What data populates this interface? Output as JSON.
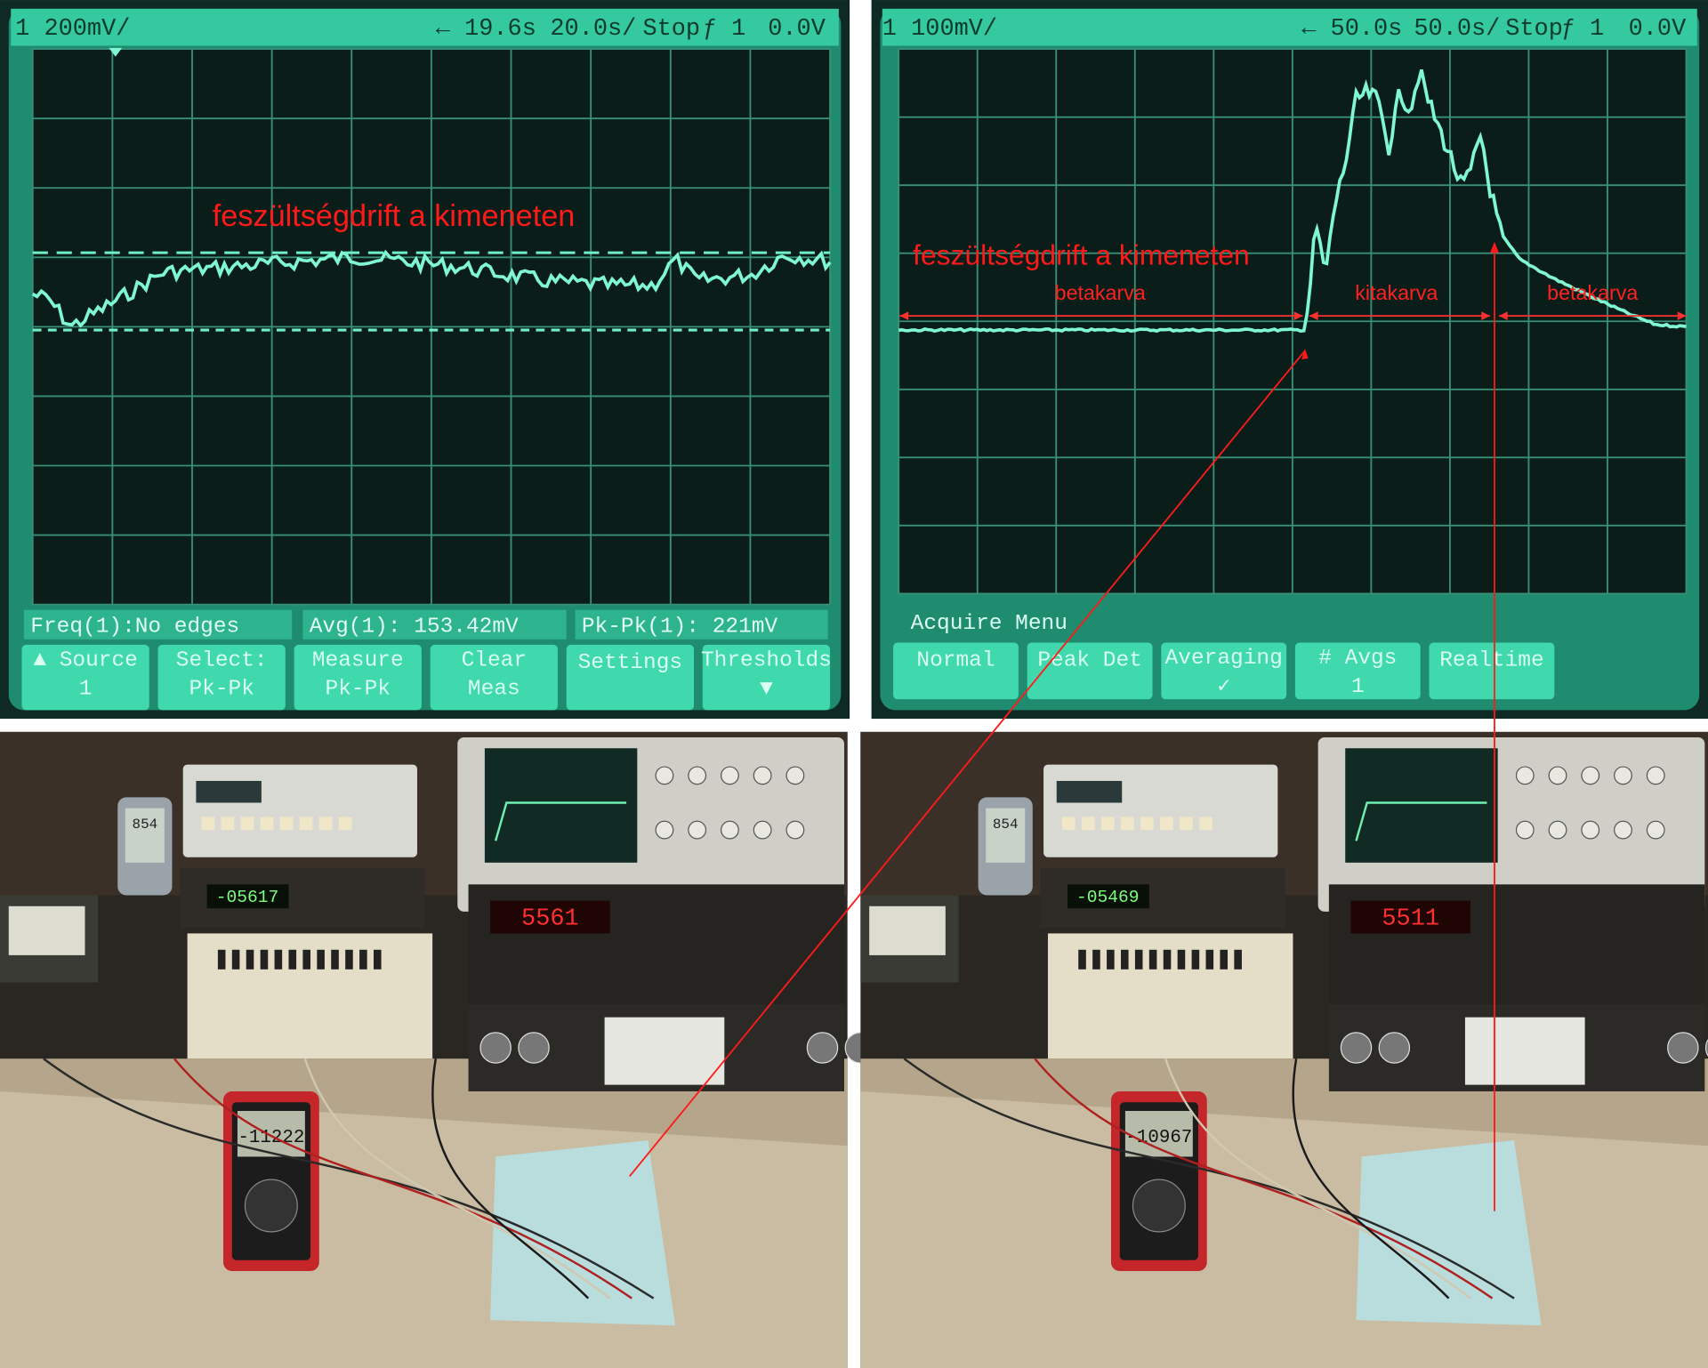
{
  "scopes": [
    {
      "header": {
        "scale": "1 200mV/",
        "delay": "← 19.6s",
        "timebase": "20.0s/",
        "status": "Stop",
        "trigger": "ƒ 1",
        "level": "0.0V"
      },
      "annotation": "feszültségdrift a kimeneten",
      "measurements": [
        "Freq(1):No edges",
        "Avg(1): 153.42mV",
        "Pk-Pk(1): 221mV"
      ],
      "softkeys": [
        [
          "▲ Source",
          "1"
        ],
        [
          "Select:",
          "Pk-Pk"
        ],
        [
          "Measure",
          "Pk-Pk"
        ],
        [
          "Clear",
          "Meas"
        ],
        [
          "Settings"
        ],
        [
          "Thresholds",
          "▼"
        ]
      ]
    },
    {
      "header": {
        "scale": "1 100mV/",
        "delay": "← 50.0s",
        "timebase": "50.0s/",
        "status": "Stop",
        "trigger": "ƒ 1",
        "level": "0.0V"
      },
      "annotation": "feszültségdrift a kimeneten",
      "regions": [
        "betakarva",
        "kitakarva",
        "betakarva"
      ],
      "menu_title": "Acquire Menu",
      "softkeys": [
        [
          "Normal"
        ],
        [
          "Peak Det"
        ],
        [
          "Averaging",
          "✓"
        ],
        [
          "# Avgs",
          "1"
        ],
        [
          "Realtime"
        ]
      ]
    }
  ],
  "photos": [
    {
      "multimeter": "-11222",
      "counter": "-05617",
      "dmm": "5561",
      "clock": "854"
    },
    {
      "multimeter": "-10967",
      "counter": "-05469",
      "dmm": "5511",
      "clock": "854"
    }
  ]
}
